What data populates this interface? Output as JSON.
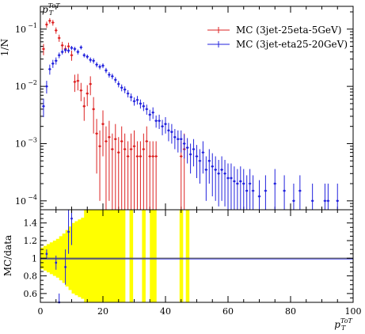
{
  "chart_data": [
    {
      "panel": "main",
      "type": "scatter",
      "y_axis_title": "1/N",
      "top_label": "p_T^{ToT}",
      "yscale": "log",
      "ylim": [
        7e-05,
        0.25
      ],
      "xlim": [
        0,
        100
      ],
      "y_tick_labels": [
        {
          "value": 0.1,
          "mantissa": "10",
          "exp": "−1"
        },
        {
          "value": 0.01,
          "mantissa": "10",
          "exp": "−2"
        },
        {
          "value": 0.001,
          "mantissa": "10",
          "exp": "−3"
        },
        {
          "value": 0.0001,
          "mantissa": "10",
          "exp": "−4"
        }
      ],
      "legend_position": "top-right",
      "series": [
        {
          "name": "MC (3jet-25eta-5GeV)",
          "color": "#dd2222",
          "x": [
            1,
            2,
            3,
            4,
            5,
            6,
            7,
            8,
            9,
            10,
            11,
            12,
            13,
            14,
            15,
            16,
            17,
            18,
            19,
            20,
            21,
            22,
            23,
            24,
            25,
            26,
            27,
            28,
            29,
            30,
            31,
            32,
            33,
            34,
            35,
            36,
            37,
            45,
            46
          ],
          "y": [
            0.045,
            0.12,
            0.14,
            0.13,
            0.095,
            0.07,
            0.052,
            0.045,
            0.05,
            0.035,
            0.012,
            0.0125,
            0.0085,
            0.0045,
            0.0075,
            0.011,
            0.004,
            0.0015,
            0.0009,
            0.0022,
            0.0011,
            0.0013,
            0.0008,
            0.0012,
            0.0007,
            0.0011,
            0.0008,
            0.0006,
            0.0008,
            0.0009,
            0.0006,
            0.0006,
            0.0008,
            0.0011,
            0.0006,
            0.0006,
            0.0006,
            0.0006,
            0.0008
          ],
          "err_down": [
            0.01,
            0.015,
            0.015,
            0.015,
            0.012,
            0.01,
            0.008,
            0.007,
            0.008,
            0.007,
            0.004,
            0.004,
            0.003,
            0.002,
            0.003,
            0.004,
            0.0025,
            0.0012,
            0.0008,
            0.0016,
            0.00106,
            0.0012,
            0.00077,
            0.00116,
            0.00067,
            0.00106,
            0.00077,
            0.00058,
            0.00077,
            0.00087,
            0.00058,
            0.00058,
            0.00077,
            0.00106,
            0.00058,
            0.00058,
            0.00058,
            0.00058,
            0.00077
          ],
          "err_up": [
            0.01,
            0.015,
            0.015,
            0.015,
            0.012,
            0.01,
            0.008,
            0.007,
            0.008,
            0.007,
            0.004,
            0.004,
            0.003,
            0.002,
            0.003,
            0.004,
            0.0025,
            0.0012,
            0.0008,
            0.0016,
            0.0009,
            0.0012,
            0.0007,
            0.001,
            0.0006,
            0.0009,
            0.0007,
            0.0005,
            0.0007,
            0.0008,
            0.0005,
            0.0005,
            0.0007,
            0.0009,
            0.0005,
            0.0005,
            0.0005,
            0.0005,
            0.0007
          ]
        },
        {
          "name": "MC (3jet-eta25-20GeV)",
          "color": "#2222dd",
          "x": [
            1,
            2,
            3,
            4,
            5,
            6,
            7,
            8,
            9,
            10,
            11,
            12,
            13,
            14,
            15,
            16,
            17,
            18,
            19,
            20,
            21,
            22,
            23,
            24,
            25,
            26,
            27,
            28,
            29,
            30,
            31,
            32,
            33,
            34,
            35,
            36,
            37,
            38,
            39,
            40,
            41,
            42,
            43,
            44,
            45,
            46,
            47,
            48,
            49,
            50,
            51,
            52,
            53,
            54,
            55,
            56,
            57,
            58,
            59,
            60,
            61,
            62,
            63,
            64,
            65,
            66,
            67,
            68,
            70,
            72,
            75,
            78,
            81,
            83,
            87,
            91,
            92,
            95
          ],
          "y": [
            0.0045,
            0.01,
            0.02,
            0.025,
            0.028,
            0.035,
            0.04,
            0.043,
            0.042,
            0.047,
            0.045,
            0.04,
            0.048,
            0.035,
            0.033,
            0.029,
            0.028,
            0.024,
            0.022,
            0.023,
            0.019,
            0.016,
            0.015,
            0.013,
            0.011,
            0.0095,
            0.0088,
            0.0075,
            0.0065,
            0.0055,
            0.0058,
            0.005,
            0.0045,
            0.004,
            0.0032,
            0.0035,
            0.0025,
            0.0025,
            0.002,
            0.0022,
            0.0017,
            0.0016,
            0.0013,
            0.0012,
            0.0012,
            0.001,
            0.00085,
            0.00065,
            0.0008,
            0.0006,
            0.0005,
            0.0007,
            0.00035,
            0.0005,
            0.0004,
            0.00035,
            0.0003,
            0.00035,
            0.0003,
            0.00025,
            0.00025,
            0.00022,
            0.0002,
            0.00022,
            0.0002,
            0.00015,
            0.0002,
            0.00015,
            0.00012,
            0.00015,
            0.0002,
            0.00015,
            0.0001,
            0.00015,
            0.0001,
            0.0001,
            0.0001,
            0.0001
          ],
          "err_down": [
            0.0016,
            0.0025,
            0.004,
            0.004,
            0.004,
            0.004,
            0.004,
            0.004,
            0.004,
            0.004,
            0.004,
            0.004,
            0.004,
            0.003,
            0.003,
            0.003,
            0.003,
            0.0025,
            0.0022,
            0.0022,
            0.002,
            0.0018,
            0.0017,
            0.0015,
            0.0014,
            0.0013,
            0.0012,
            0.0011,
            0.001,
            0.0009,
            0.001,
            0.0009,
            0.0008,
            0.0008,
            0.0007,
            0.0008,
            0.0006,
            0.0007,
            0.0006,
            0.0007,
            0.0006,
            0.0006,
            0.0005,
            0.0005,
            0.0005,
            0.00045,
            0.0004,
            0.00035,
            0.0004,
            0.00035,
            0.0003,
            0.0004,
            0.00025,
            0.0003,
            0.00028,
            0.00025,
            0.00022,
            0.00025,
            0.00022,
            0.0002,
            0.0002,
            0.00018,
            0.00016,
            0.00018,
            0.00016,
            0.00013,
            0.00016,
            0.00013,
            0.00011,
            0.00013,
            0.00016,
            0.00013,
            0.0001,
            0.00013,
            0.0001,
            0.0001,
            0.0001,
            0.0001
          ],
          "err_up": [
            0.0016,
            0.0025,
            0.004,
            0.004,
            0.004,
            0.004,
            0.004,
            0.004,
            0.004,
            0.004,
            0.004,
            0.004,
            0.004,
            0.003,
            0.003,
            0.003,
            0.003,
            0.0025,
            0.0022,
            0.0022,
            0.002,
            0.0018,
            0.0017,
            0.0015,
            0.0014,
            0.0013,
            0.0012,
            0.0011,
            0.001,
            0.0009,
            0.001,
            0.0009,
            0.0008,
            0.0008,
            0.0007,
            0.0008,
            0.0006,
            0.0007,
            0.0006,
            0.0007,
            0.0006,
            0.0006,
            0.0005,
            0.0005,
            0.0005,
            0.00045,
            0.0004,
            0.00035,
            0.0004,
            0.00035,
            0.0003,
            0.0004,
            0.00025,
            0.0003,
            0.00028,
            0.00025,
            0.00022,
            0.00025,
            0.00022,
            0.0002,
            0.0002,
            0.00018,
            0.00016,
            0.00018,
            0.00016,
            0.00013,
            0.00016,
            0.00013,
            0.00011,
            0.00013,
            0.00016,
            0.00013,
            0.0001,
            0.00013,
            0.0001,
            0.0001,
            0.0001,
            0.0001
          ]
        }
      ]
    },
    {
      "panel": "ratio",
      "type": "scatter",
      "y_axis_title": "MC/data",
      "x_axis_title": "p_T^{ToT}",
      "xlim": [
        0,
        100
      ],
      "ylim": [
        0.5,
        1.55
      ],
      "x_tick_labels": [
        "0",
        "20",
        "40",
        "60",
        "80",
        "100"
      ],
      "x_ticks": [
        0,
        20,
        40,
        60,
        80,
        100
      ],
      "y_tick_labels": [
        "0.6",
        "0.8",
        "1",
        "1.2",
        "1.4"
      ],
      "y_ticks": [
        0.6,
        0.8,
        1.0,
        1.2,
        1.4
      ],
      "reference_line": 1.0,
      "band_color": "#ffff00",
      "band": {
        "x": [
          0.5,
          1.5,
          2.5,
          3.5,
          4.5,
          5.5,
          6.5,
          7.5,
          8.5,
          9.5,
          10.5,
          11.5,
          12.5,
          13.5,
          14.5,
          26.5,
          28,
          29,
          33,
          34,
          35.5,
          36.5,
          37.5,
          45,
          46,
          47
        ],
        "lo": [
          0.88,
          0.86,
          0.84,
          0.82,
          0.8,
          0.78,
          0.75,
          0.72,
          0.68,
          0.64,
          0.6,
          0.58,
          0.56,
          0.54,
          0.5,
          0.5,
          1.0,
          0.5,
          0.5,
          1.0,
          0.5,
          0.5,
          1.0,
          0.5,
          1.0,
          0.5
        ],
        "hi": [
          1.12,
          1.14,
          1.16,
          1.18,
          1.2,
          1.22,
          1.25,
          1.28,
          1.32,
          1.36,
          1.4,
          1.42,
          1.44,
          1.46,
          1.55,
          1.55,
          1.0,
          1.55,
          1.55,
          1.0,
          1.55,
          1.55,
          1.0,
          1.55,
          1.0,
          1.55
        ]
      },
      "blue_points": {
        "x": [
          2,
          5,
          6,
          8,
          9,
          10
        ],
        "y": [
          1.05,
          0.95,
          0.5,
          0.9,
          1.3,
          1.45
        ],
        "err": [
          0.05,
          0.08,
          0.1,
          0.2,
          0.25,
          0.3
        ]
      },
      "blue_line_color": "#2222dd"
    }
  ]
}
